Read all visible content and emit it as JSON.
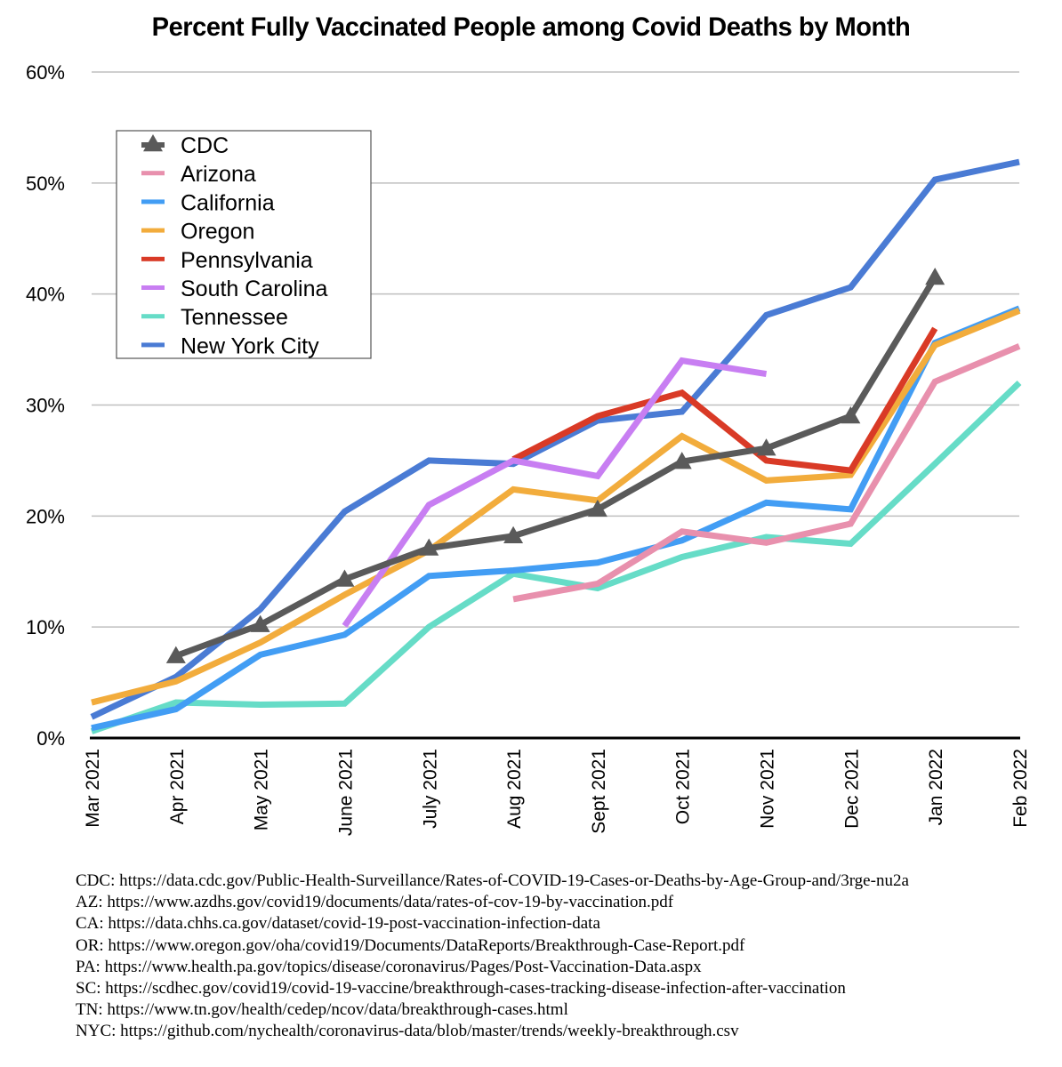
{
  "chart_data": {
    "type": "line",
    "title": "Percent Fully Vaccinated People among Covid Deaths by Month",
    "xlabel": "",
    "ylabel": "",
    "categories": [
      "Mar 2021",
      "Apr 2021",
      "May 2021",
      "June 2021",
      "July 2021",
      "Aug 2021",
      "Sept 2021",
      "Oct 2021",
      "Nov 2021",
      "Dec 2021",
      "Jan 2022",
      "Feb 2022"
    ],
    "ylim": [
      0,
      60
    ],
    "yticks": [
      0,
      10,
      20,
      30,
      40,
      50,
      60
    ],
    "ytick_labels": [
      "0%",
      "10%",
      "20%",
      "30%",
      "40%",
      "50%",
      "60%"
    ],
    "grid": "horizontal",
    "legend_position": "top-left",
    "series": [
      {
        "name": "CDC",
        "color": "#5a5a5a",
        "marker": "triangle",
        "values": [
          null,
          7.4,
          10.2,
          14.3,
          17.1,
          18.2,
          20.6,
          24.9,
          26.1,
          29.0,
          41.5,
          null
        ]
      },
      {
        "name": "Arizona",
        "color": "#e890ad",
        "marker": "none",
        "values": [
          null,
          null,
          null,
          null,
          null,
          12.5,
          13.9,
          18.6,
          17.6,
          19.3,
          32.1,
          35.3
        ]
      },
      {
        "name": "California",
        "color": "#429df4",
        "marker": "none",
        "values": [
          0.9,
          2.6,
          7.5,
          9.3,
          14.6,
          15.1,
          15.8,
          17.8,
          21.2,
          20.6,
          35.6,
          38.7
        ]
      },
      {
        "name": "Oregon",
        "color": "#f2ac3c",
        "marker": "none",
        "values": [
          3.2,
          5.1,
          8.6,
          12.9,
          16.9,
          22.4,
          21.4,
          27.2,
          23.2,
          23.7,
          35.4,
          38.5
        ]
      },
      {
        "name": "Pennsylvania",
        "color": "#d93a26",
        "marker": "none",
        "values": [
          null,
          null,
          null,
          null,
          null,
          25.1,
          29.0,
          31.1,
          25.0,
          24.1,
          36.9,
          null
        ]
      },
      {
        "name": "South Carolina",
        "color": "#c87ef2",
        "marker": "none",
        "values": [
          null,
          null,
          null,
          10.1,
          21.0,
          25.0,
          23.6,
          34.0,
          32.8,
          null,
          null,
          null
        ]
      },
      {
        "name": "Tennessee",
        "color": "#66dcc7",
        "marker": "none",
        "values": [
          0.6,
          3.2,
          3.0,
          3.1,
          10.0,
          14.8,
          13.5,
          16.3,
          18.1,
          17.5,
          24.7,
          32.0
        ]
      },
      {
        "name": "New York City",
        "color": "#4a7bd4",
        "marker": "none",
        "values": [
          1.9,
          5.5,
          11.6,
          20.4,
          25.0,
          24.7,
          28.6,
          29.4,
          38.1,
          40.6,
          50.3,
          51.9
        ]
      }
    ],
    "draw_order": [
      "New York City",
      "Tennessee",
      "California",
      "Oregon",
      "Arizona",
      "Pennsylvania",
      "South Carolina",
      "CDC"
    ]
  },
  "sources": [
    "CDC: https://data.cdc.gov/Public-Health-Surveillance/Rates-of-COVID-19-Cases-or-Deaths-by-Age-Group-and/3rge-nu2a",
    "AZ: https://www.azdhs.gov/covid19/documents/data/rates-of-cov-19-by-vaccination.pdf",
    "CA: https://data.chhs.ca.gov/dataset/covid-19-post-vaccination-infection-data",
    "OR: https://www.oregon.gov/oha/covid19/Documents/DataReports/Breakthrough-Case-Report.pdf",
    "PA: https://www.health.pa.gov/topics/disease/coronavirus/Pages/Post-Vaccination-Data.aspx",
    "SC: https://scdhec.gov/covid19/covid-19-vaccine/breakthrough-cases-tracking-disease-infection-after-vaccination",
    "TN: https://www.tn.gov/health/cedep/ncov/data/breakthrough-cases.html",
    "NYC: https://github.com/nychealth/coronavirus-data/blob/master/trends/weekly-breakthrough.csv"
  ]
}
